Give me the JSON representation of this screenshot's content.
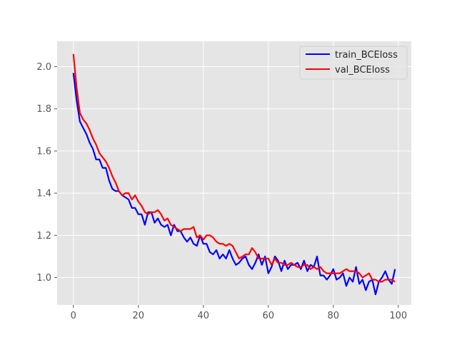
{
  "chart_data": {
    "type": "line",
    "title": "",
    "xlabel": "",
    "ylabel": "",
    "xlim": [
      -5,
      104
    ],
    "ylim": [
      0.87,
      2.12
    ],
    "xticks": [
      0,
      20,
      40,
      60,
      80,
      100
    ],
    "yticks": [
      1.0,
      1.2,
      1.4,
      1.6,
      1.8,
      2.0
    ],
    "ytick_labels": [
      "1.0",
      "1.2",
      "1.4",
      "1.6",
      "1.8",
      "2.0"
    ],
    "grid": true,
    "legend_position": "upper-right",
    "background": "#e5e5e5",
    "series": [
      {
        "name": "train_BCEloss",
        "color": "#0000ff",
        "x": [
          0,
          1,
          2,
          3,
          4,
          5,
          6,
          7,
          8,
          9,
          10,
          11,
          12,
          13,
          14,
          15,
          16,
          17,
          18,
          19,
          20,
          21,
          22,
          23,
          24,
          25,
          26,
          27,
          28,
          29,
          30,
          31,
          32,
          33,
          34,
          35,
          36,
          37,
          38,
          39,
          40,
          41,
          42,
          43,
          44,
          45,
          46,
          47,
          48,
          49,
          50,
          51,
          52,
          53,
          54,
          55,
          56,
          57,
          58,
          59,
          60,
          61,
          62,
          63,
          64,
          65,
          66,
          67,
          68,
          69,
          70,
          71,
          72,
          73,
          74,
          75,
          76,
          77,
          78,
          79,
          80,
          81,
          82,
          83,
          84,
          85,
          86,
          87,
          88,
          89,
          90,
          91,
          92,
          93,
          94,
          95,
          96,
          97,
          98,
          99
        ],
        "values": [
          1.97,
          1.84,
          1.74,
          1.71,
          1.68,
          1.64,
          1.61,
          1.56,
          1.56,
          1.52,
          1.52,
          1.46,
          1.42,
          1.41,
          1.41,
          1.39,
          1.38,
          1.37,
          1.33,
          1.33,
          1.3,
          1.3,
          1.25,
          1.31,
          1.31,
          1.26,
          1.28,
          1.25,
          1.24,
          1.25,
          1.2,
          1.25,
          1.22,
          1.22,
          1.19,
          1.17,
          1.19,
          1.16,
          1.15,
          1.2,
          1.16,
          1.16,
          1.12,
          1.11,
          1.13,
          1.09,
          1.11,
          1.09,
          1.13,
          1.09,
          1.06,
          1.07,
          1.09,
          1.1,
          1.06,
          1.04,
          1.07,
          1.11,
          1.06,
          1.1,
          1.02,
          1.05,
          1.1,
          1.08,
          1.03,
          1.08,
          1.04,
          1.06,
          1.06,
          1.07,
          1.04,
          1.08,
          1.03,
          1.06,
          1.05,
          1.1,
          1.01,
          1.01,
          0.99,
          1.01,
          1.04,
          0.99,
          1.0,
          1.02,
          0.96,
          1.0,
          0.98,
          1.05,
          0.97,
          0.99,
          0.94,
          0.98,
          0.99,
          0.92,
          0.98,
          1.0,
          1.03,
          0.99,
          0.97,
          1.04
        ]
      },
      {
        "name": "val_BCEloss",
        "color": "#ff0000",
        "x": [
          0,
          1,
          2,
          3,
          4,
          5,
          6,
          7,
          8,
          9,
          10,
          11,
          12,
          13,
          14,
          15,
          16,
          17,
          18,
          19,
          20,
          21,
          22,
          23,
          24,
          25,
          26,
          27,
          28,
          29,
          30,
          31,
          32,
          33,
          34,
          35,
          36,
          37,
          38,
          39,
          40,
          41,
          42,
          43,
          44,
          45,
          46,
          47,
          48,
          49,
          50,
          51,
          52,
          53,
          54,
          55,
          56,
          57,
          58,
          59,
          60,
          61,
          62,
          63,
          64,
          65,
          66,
          67,
          68,
          69,
          70,
          71,
          72,
          73,
          74,
          75,
          76,
          77,
          78,
          79,
          80,
          81,
          82,
          83,
          84,
          85,
          86,
          87,
          88,
          89,
          90,
          91,
          92,
          93,
          94,
          95,
          96,
          97,
          98,
          99
        ],
        "values": [
          2.06,
          1.9,
          1.78,
          1.75,
          1.73,
          1.7,
          1.66,
          1.63,
          1.59,
          1.57,
          1.55,
          1.52,
          1.48,
          1.45,
          1.41,
          1.39,
          1.4,
          1.4,
          1.37,
          1.39,
          1.36,
          1.34,
          1.31,
          1.3,
          1.31,
          1.31,
          1.32,
          1.3,
          1.27,
          1.28,
          1.25,
          1.24,
          1.23,
          1.22,
          1.23,
          1.23,
          1.23,
          1.24,
          1.19,
          1.2,
          1.18,
          1.2,
          1.2,
          1.19,
          1.17,
          1.16,
          1.16,
          1.15,
          1.16,
          1.15,
          1.12,
          1.09,
          1.1,
          1.11,
          1.11,
          1.14,
          1.12,
          1.09,
          1.09,
          1.09,
          1.09,
          1.06,
          1.09,
          1.07,
          1.07,
          1.06,
          1.06,
          1.07,
          1.06,
          1.05,
          1.05,
          1.06,
          1.06,
          1.04,
          1.05,
          1.04,
          1.05,
          1.03,
          1.02,
          1.02,
          1.02,
          1.02,
          1.02,
          1.03,
          1.04,
          1.03,
          1.03,
          1.03,
          1.02,
          1.0,
          1.01,
          1.02,
          0.99,
          0.99,
          0.98,
          0.98,
          0.99,
          0.99,
          0.99,
          0.98
        ]
      }
    ]
  }
}
